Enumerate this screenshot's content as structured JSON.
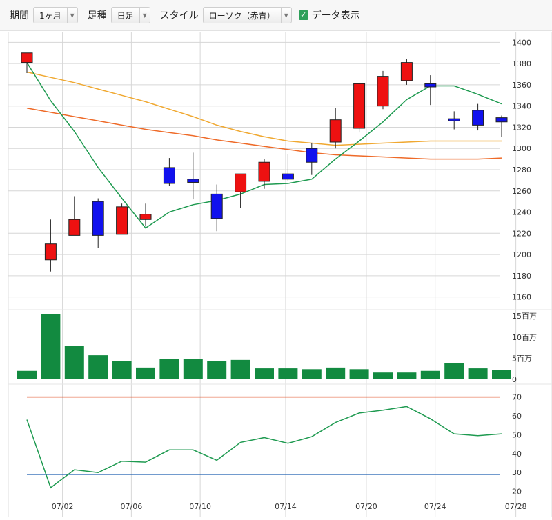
{
  "toolbar": {
    "period_label": "期間",
    "period_value": "1ヶ月",
    "interval_label": "足種",
    "interval_value": "日足",
    "style_label": "スタイル",
    "style_value": "ローソク（赤青）",
    "show_data_label": "データ表示",
    "show_data_checked": true
  },
  "colors": {
    "up_candle": "#ee1111",
    "down_candle": "#1111ee",
    "ma_short": "#1e9a50",
    "ma_mid": "#f0a830",
    "ma_long": "#ee6a28",
    "volume_bar": "#128a40",
    "indicator_line": "#1e9a50",
    "upper_band": "#e05028",
    "lower_band": "#1f5fb0",
    "grid": "#d6d6d6"
  },
  "chart_data": [
    {
      "type": "candlestick",
      "ylim": [
        1150,
        1410
      ],
      "yticks": [
        1160,
        1180,
        1200,
        1220,
        1240,
        1260,
        1280,
        1300,
        1320,
        1340,
        1360,
        1380,
        1400
      ],
      "x_tick_labels": [
        "07/02",
        "07/06",
        "07/10",
        "07/14",
        "07/20",
        "07/24",
        "07/28"
      ],
      "x_tick_index": [
        1.5,
        4.4,
        7.3,
        10.9,
        14.3,
        17.2,
        20.6
      ],
      "candles": [
        {
          "open": 1381,
          "high": 1390,
          "low": 1371,
          "close": 1390
        },
        {
          "open": 1195,
          "high": 1233,
          "low": 1184,
          "close": 1210
        },
        {
          "open": 1218,
          "high": 1255,
          "low": 1218,
          "close": 1233
        },
        {
          "open": 1250,
          "high": 1253,
          "low": 1206,
          "close": 1218
        },
        {
          "open": 1219,
          "high": 1248,
          "low": 1219,
          "close": 1245
        },
        {
          "open": 1233,
          "high": 1248,
          "low": 1227,
          "close": 1238
        },
        {
          "open": 1282,
          "high": 1291,
          "low": 1265,
          "close": 1267
        },
        {
          "open": 1271,
          "high": 1296,
          "low": 1252,
          "close": 1268
        },
        {
          "open": 1257,
          "high": 1266,
          "low": 1222,
          "close": 1234
        },
        {
          "open": 1259,
          "high": 1276,
          "low": 1244,
          "close": 1276
        },
        {
          "open": 1269,
          "high": 1290,
          "low": 1262,
          "close": 1287
        },
        {
          "open": 1276,
          "high": 1295,
          "low": 1269,
          "close": 1271
        },
        {
          "open": 1300,
          "high": 1305,
          "low": 1275,
          "close": 1287
        },
        {
          "open": 1306,
          "high": 1338,
          "low": 1300,
          "close": 1327
        },
        {
          "open": 1319,
          "high": 1362,
          "low": 1315,
          "close": 1361
        },
        {
          "open": 1340,
          "high": 1373,
          "low": 1337,
          "close": 1368
        },
        {
          "open": 1364,
          "high": 1384,
          "low": 1360,
          "close": 1381
        },
        {
          "open": 1361,
          "high": 1369,
          "low": 1341,
          "close": 1358
        },
        {
          "open": 1328,
          "high": 1335,
          "low": 1318,
          "close": 1326
        },
        {
          "open": 1336,
          "high": 1342,
          "low": 1317,
          "close": 1322
        },
        {
          "open": 1329,
          "high": 1331,
          "low": 1311,
          "close": 1325
        }
      ],
      "ma_short": [
        1381,
        1345,
        1316,
        1282,
        1253,
        1225,
        1240,
        1247,
        1251,
        1257,
        1266,
        1267,
        1271,
        1290,
        1307,
        1325,
        1346,
        1359,
        1359,
        1351,
        1342
      ],
      "ma_mid": [
        1372,
        1367,
        1362,
        1356,
        1350,
        1344,
        1337,
        1330,
        1322,
        1316,
        1311,
        1307,
        1305,
        1303,
        1304,
        1305,
        1306,
        1307,
        1307,
        1307,
        1307
      ],
      "ma_long": [
        1338,
        1334,
        1330,
        1326,
        1322,
        1318,
        1315,
        1312,
        1308,
        1305,
        1302,
        1299,
        1296,
        1294,
        1293,
        1292,
        1291,
        1290,
        1290,
        1290,
        1291
      ]
    },
    {
      "type": "bar",
      "ylim": [
        0,
        17
      ],
      "yticks": [
        {
          "value": 0,
          "label": "0"
        },
        {
          "value": 5,
          "label": "5百万"
        },
        {
          "value": 10,
          "label": "10百万"
        },
        {
          "value": 15,
          "label": "15百万"
        }
      ],
      "values": [
        2.0,
        15.4,
        8.0,
        5.7,
        4.4,
        2.8,
        4.8,
        4.9,
        4.4,
        4.6,
        2.6,
        2.6,
        2.4,
        2.8,
        2.4,
        1.6,
        1.6,
        2.0,
        3.8,
        2.6,
        2.2
      ]
    },
    {
      "type": "line",
      "ylim": [
        18,
        75
      ],
      "yticks": [
        20,
        30,
        40,
        50,
        60,
        70
      ],
      "upper_band": 70,
      "lower_band": 29,
      "values": [
        58,
        22,
        31.5,
        30,
        36,
        35.5,
        42,
        42,
        36.5,
        46,
        48.5,
        45.5,
        49,
        56.5,
        61.5,
        63,
        65,
        58.5,
        50.5,
        49.5,
        50.5
      ]
    }
  ]
}
